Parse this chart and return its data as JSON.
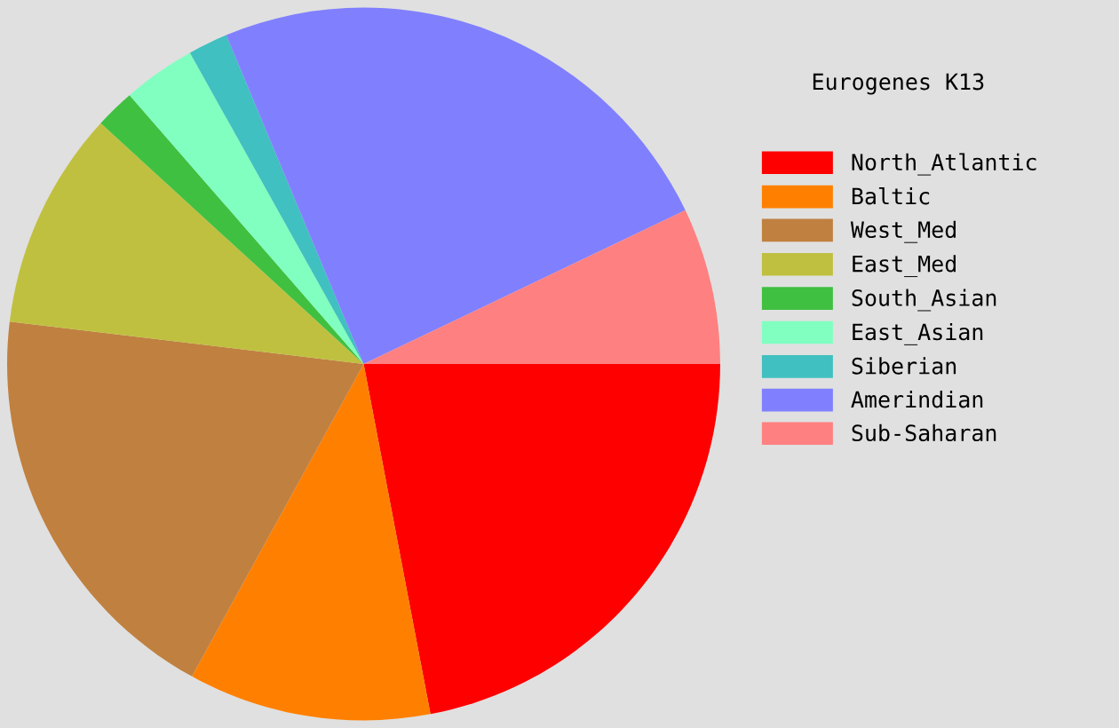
{
  "chart_data": {
    "type": "pie",
    "legend_title": "Eurogenes K13",
    "legend": "right",
    "categories": [
      "North_Atlantic",
      "Baltic",
      "West_Med",
      "East_Med",
      "South_Asian",
      "East_Asian",
      "Siberian",
      "Amerindian",
      "Sub-Saharan"
    ],
    "values": [
      22.0,
      11.0,
      18.9,
      9.9,
      1.8,
      3.3,
      1.8,
      24.2,
      7.1
    ],
    "colors": [
      "#ff0000",
      "#ff8000",
      "#c08040",
      "#c0c040",
      "#40c040",
      "#80ffc0",
      "#40c0c0",
      "#8080ff",
      "#ff8080"
    ]
  }
}
